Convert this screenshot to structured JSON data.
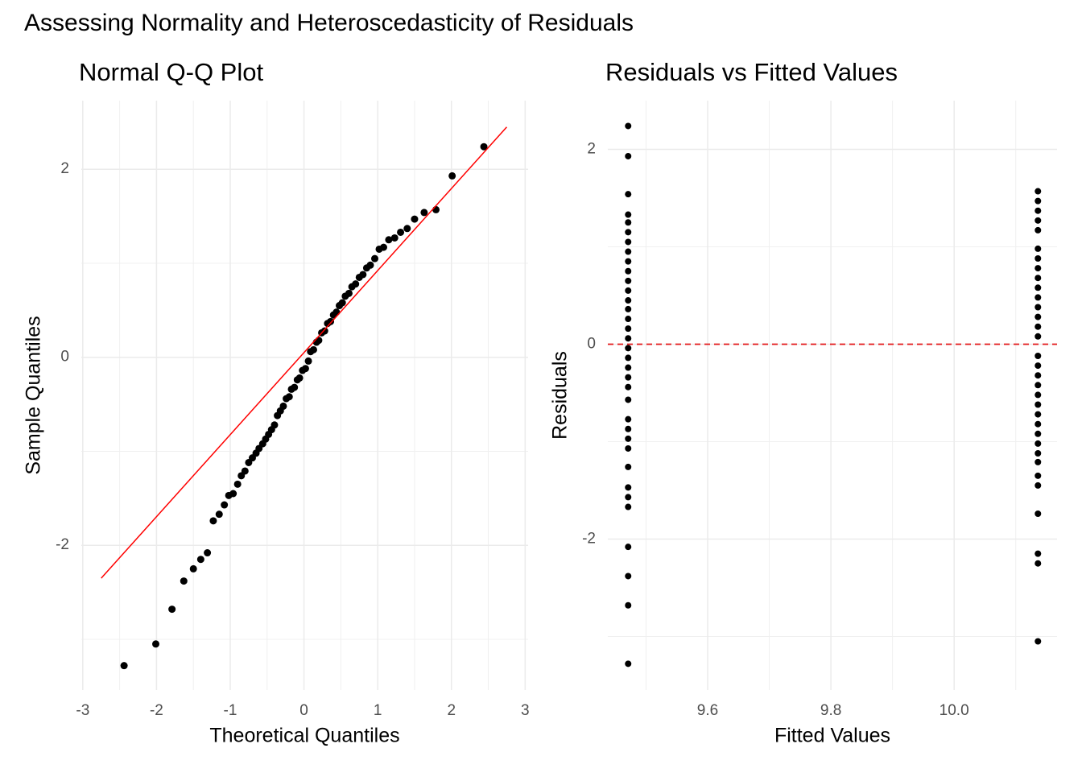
{
  "title": "Assessing Normality and Heteroscedasticity of Residuals",
  "chart_data": [
    {
      "type": "scatter",
      "title": "Normal Q-Q Plot",
      "x_label": "Theoretical Quantiles",
      "y_label": "Sample Quantiles",
      "x": [
        -2.44,
        -2.01,
        -1.79,
        -1.63,
        -1.5,
        -1.4,
        -1.31,
        -1.23,
        -1.15,
        -1.08,
        -1.02,
        -0.96,
        -0.9,
        -0.85,
        -0.8,
        -0.75,
        -0.7,
        -0.65,
        -0.61,
        -0.56,
        -0.52,
        -0.48,
        -0.44,
        -0.4,
        -0.36,
        -0.32,
        -0.28,
        -0.24,
        -0.2,
        -0.17,
        -0.13,
        -0.09,
        -0.06,
        -0.02,
        0.02,
        0.06,
        0.09,
        0.13,
        0.17,
        0.2,
        0.24,
        0.28,
        0.32,
        0.36,
        0.4,
        0.44,
        0.48,
        0.52,
        0.56,
        0.61,
        0.65,
        0.7,
        0.75,
        0.8,
        0.85,
        0.9,
        0.96,
        1.02,
        1.08,
        1.15,
        1.23,
        1.31,
        1.4,
        1.5,
        1.63,
        1.79,
        2.01,
        2.44
      ],
      "y": [
        -3.28,
        -3.05,
        -2.68,
        -2.38,
        -2.25,
        -2.15,
        -2.08,
        -1.74,
        -1.67,
        -1.57,
        -1.47,
        -1.45,
        -1.35,
        -1.26,
        -1.21,
        -1.12,
        -1.07,
        -1.02,
        -0.97,
        -0.92,
        -0.87,
        -0.82,
        -0.77,
        -0.72,
        -0.62,
        -0.57,
        -0.52,
        -0.44,
        -0.42,
        -0.34,
        -0.32,
        -0.24,
        -0.22,
        -0.14,
        -0.12,
        -0.04,
        0.06,
        0.08,
        0.16,
        0.18,
        0.26,
        0.28,
        0.36,
        0.38,
        0.45,
        0.48,
        0.55,
        0.58,
        0.65,
        0.68,
        0.75,
        0.78,
        0.85,
        0.88,
        0.95,
        0.98,
        1.05,
        1.15,
        1.17,
        1.25,
        1.27,
        1.33,
        1.37,
        1.47,
        1.54,
        1.57,
        1.93,
        2.24
      ],
      "color": "#000000",
      "xlim": [
        -3.02,
        3.04
      ],
      "ylim": [
        -3.54,
        2.73
      ],
      "xticks": [
        -3,
        -2,
        -1,
        0,
        1,
        2,
        3
      ],
      "yticks": [
        -2,
        0,
        2
      ],
      "grid": true,
      "reference_line": {
        "x": [
          -2.75,
          2.75
        ],
        "y": [
          -2.35,
          2.45
        ],
        "color": "#ff0000"
      }
    },
    {
      "type": "scatter",
      "title": "Residuals vs Fitted Values",
      "x_label": "Fitted Values",
      "y_label": "Residuals",
      "x": [
        9.471,
        9.471,
        9.471,
        9.471,
        9.471,
        9.471,
        9.471,
        9.471,
        9.471,
        9.471,
        9.471,
        9.471,
        9.471,
        9.471,
        9.471,
        9.471,
        9.471,
        9.471,
        9.471,
        9.471,
        9.471,
        9.471,
        9.471,
        9.471,
        9.471,
        9.471,
        9.471,
        9.471,
        9.471,
        9.471,
        9.471,
        9.471,
        9.471,
        9.471,
        9.471,
        10.136,
        10.136,
        10.136,
        10.136,
        10.136,
        10.136,
        10.136,
        10.136,
        10.136,
        10.136,
        10.136,
        10.136,
        10.136,
        10.136,
        10.136,
        10.136,
        10.136,
        10.136,
        10.136,
        10.136,
        10.136,
        10.136,
        10.136,
        10.136,
        10.136,
        10.136,
        10.136,
        10.136,
        10.136,
        10.136,
        10.136,
        10.136,
        10.136
      ],
      "y": [
        2.24,
        1.93,
        1.54,
        1.33,
        1.25,
        1.15,
        1.05,
        0.95,
        0.85,
        0.75,
        0.65,
        0.55,
        0.45,
        0.36,
        0.26,
        0.16,
        0.06,
        -0.04,
        -0.14,
        -0.24,
        -0.34,
        -0.44,
        -0.57,
        -0.77,
        -0.87,
        -0.97,
        -1.07,
        -1.26,
        -1.47,
        -1.57,
        -1.67,
        -2.08,
        -2.38,
        -2.68,
        -3.28,
        1.57,
        1.47,
        1.37,
        1.27,
        1.17,
        0.98,
        0.88,
        0.78,
        0.68,
        0.58,
        0.48,
        0.38,
        0.28,
        0.18,
        0.08,
        -0.12,
        -0.22,
        -0.32,
        -0.42,
        -0.52,
        -0.62,
        -0.72,
        -0.82,
        -0.92,
        -1.02,
        -1.12,
        -1.21,
        -1.35,
        -1.45,
        -1.74,
        -2.15,
        -2.25,
        -3.05
      ],
      "color": "#000000",
      "xlim": [
        9.438,
        10.167
      ],
      "ylim": [
        -3.55,
        2.5
      ],
      "xticks": [
        9.6,
        9.8,
        {
          "value": 10.0,
          "label": "10.0"
        }
      ],
      "yticks": [
        -2,
        0,
        2
      ],
      "grid": true,
      "hline": {
        "y": 0,
        "color": "#e41a1c"
      }
    }
  ]
}
